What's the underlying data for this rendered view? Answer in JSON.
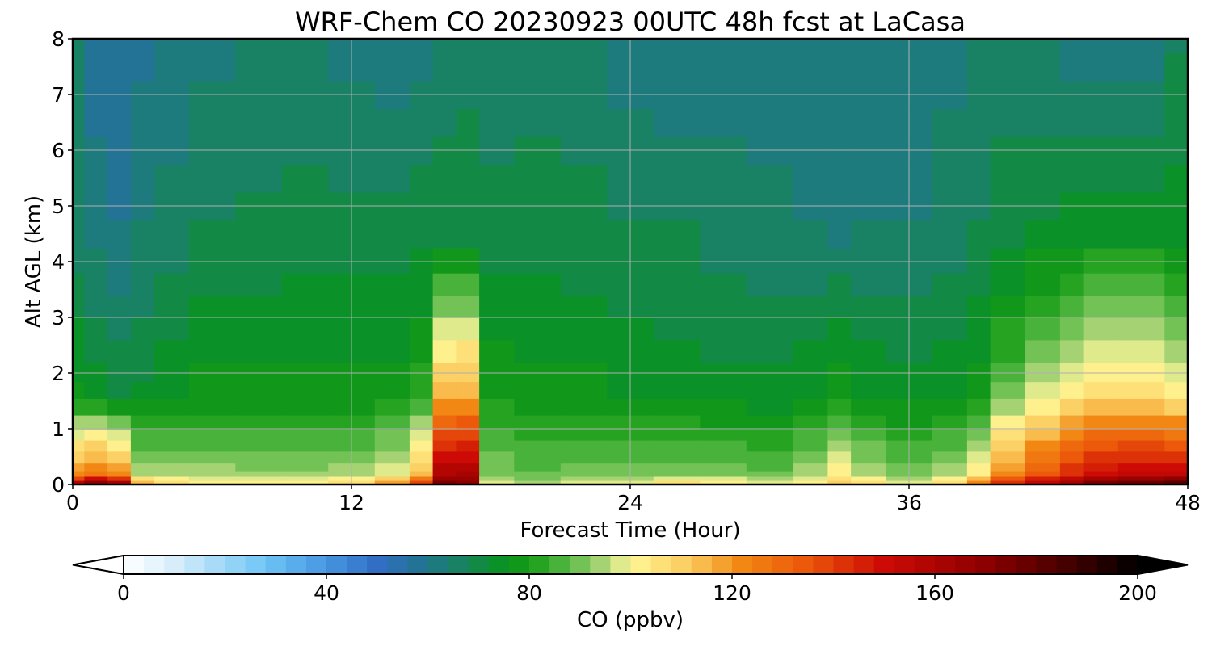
{
  "chart_data": {
    "type": "heatmap",
    "title": "WRF-Chem CO  20230923 00UTC 48h fcst at LaCasa",
    "xlabel": "Forecast Time (Hour)",
    "ylabel": "Alt AGL (km)",
    "xlim": [
      0,
      48
    ],
    "ylim": [
      0,
      8
    ],
    "xticks": [
      0,
      12,
      24,
      36,
      48
    ],
    "yticks": [
      0,
      1,
      2,
      3,
      4,
      5,
      6,
      7,
      8
    ],
    "grid": true,
    "colorbar": {
      "label": "CO  (ppbv)",
      "range": [
        0,
        200
      ],
      "ticks": [
        0,
        40,
        80,
        120,
        160,
        200
      ],
      "extend": "both",
      "orientation": "horizontal",
      "placement": "bottom"
    },
    "x_hours": [
      0,
      1,
      2,
      3,
      4,
      6,
      8,
      10,
      12,
      14,
      15,
      16,
      17,
      18,
      20,
      22,
      24,
      26,
      28,
      30,
      32,
      33,
      34,
      36,
      38,
      39,
      40,
      42,
      43,
      44,
      46,
      48
    ],
    "y_km": [
      0,
      0.05,
      0.1,
      0.2,
      0.3,
      0.5,
      0.7,
      0.9,
      1.1,
      1.4,
      1.7,
      2.0,
      2.4,
      2.8,
      3.2,
      3.6,
      4.0,
      4.5,
      5.0,
      5.5,
      6.0,
      6.5,
      7.0,
      7.5,
      8.0
    ],
    "co_ppbv_surface": [
      175,
      192,
      182,
      120,
      112,
      108,
      106,
      107,
      112,
      125,
      150,
      178,
      175,
      102,
      96,
      100,
      102,
      110,
      108,
      104,
      108,
      116,
      112,
      104,
      112,
      128,
      150,
      162,
      170,
      182,
      192,
      198
    ],
    "co_ppbv_low": [
      86,
      86,
      82,
      80,
      82,
      85,
      84,
      84,
      83,
      84,
      90,
      150,
      155,
      86,
      84,
      84,
      82,
      80,
      80,
      80,
      86,
      94,
      86,
      82,
      84,
      88,
      105,
      118,
      128,
      132,
      130,
      126
    ],
    "co_ppbv_mid": [
      66,
      62,
      60,
      64,
      66,
      68,
      69,
      70,
      70,
      70,
      71,
      71,
      71,
      70,
      70,
      69,
      68,
      68,
      66,
      65,
      64,
      63,
      64,
      64,
      66,
      68,
      70,
      72,
      74,
      75,
      75,
      74
    ],
    "co_ppbv_upper": [
      64,
      58,
      56,
      59,
      61,
      63,
      65,
      64,
      62,
      60,
      62,
      64,
      66,
      65,
      66,
      66,
      62,
      60,
      62,
      62,
      60,
      60,
      61,
      62,
      63,
      66,
      66,
      64,
      62,
      61,
      62,
      67
    ]
  }
}
